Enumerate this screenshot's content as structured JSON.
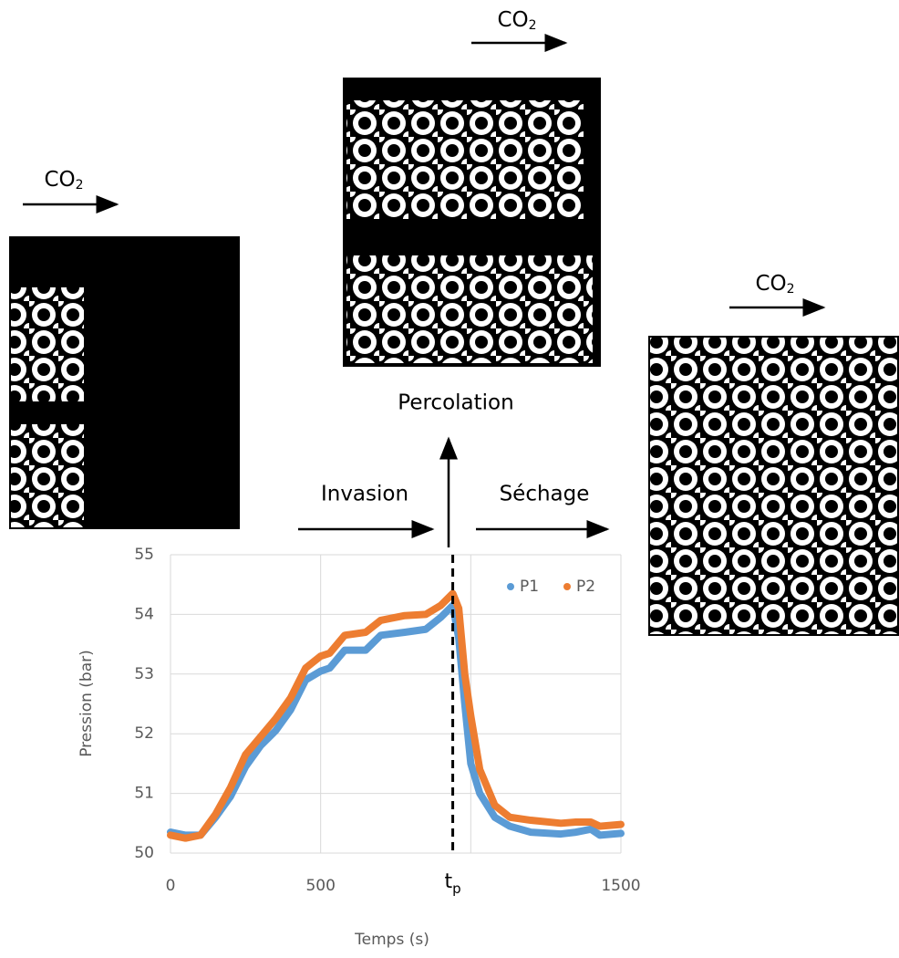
{
  "chart_data": {
    "type": "line",
    "ylabel": "Pression (bar)",
    "xlabel": "Temps (s)",
    "xlim": [
      0,
      1500
    ],
    "ylim": [
      50,
      55
    ],
    "xticks": [
      0,
      500,
      1500
    ],
    "xgrid": [
      0,
      500,
      1000,
      1500
    ],
    "yticks": [
      50,
      51,
      52,
      53,
      54,
      55
    ],
    "grid": true,
    "legend": "upper right",
    "x": [
      0,
      50,
      100,
      150,
      200,
      250,
      300,
      350,
      400,
      450,
      500,
      530,
      580,
      650,
      700,
      780,
      850,
      900,
      940,
      960,
      980,
      1000,
      1030,
      1080,
      1130,
      1200,
      1300,
      1350,
      1400,
      1430,
      1500
    ],
    "series": [
      {
        "name": "P1",
        "color": "#5b9bd5",
        "values": [
          50.35,
          50.3,
          50.3,
          50.6,
          50.95,
          51.45,
          51.8,
          52.05,
          52.4,
          52.9,
          53.05,
          53.1,
          53.4,
          53.4,
          53.65,
          53.7,
          53.75,
          53.95,
          54.15,
          53.6,
          52.5,
          51.5,
          51.0,
          50.6,
          50.45,
          50.35,
          50.32,
          50.35,
          50.4,
          50.3,
          50.33
        ]
      },
      {
        "name": "P2",
        "color": "#ed7d31",
        "values": [
          50.3,
          50.25,
          50.3,
          50.65,
          51.1,
          51.65,
          51.95,
          52.25,
          52.6,
          53.1,
          53.3,
          53.35,
          53.65,
          53.7,
          53.9,
          53.98,
          54.0,
          54.15,
          54.35,
          54.1,
          53.0,
          52.3,
          51.4,
          50.8,
          50.6,
          50.55,
          50.5,
          50.52,
          50.52,
          50.45,
          50.48
        ]
      }
    ],
    "tp_marker": {
      "x": 940,
      "label": "t",
      "subscript": "p"
    },
    "phase_labels": [
      "Invasion",
      "Séchage",
      "Percolation"
    ],
    "flow_labels": [
      {
        "text": "CO",
        "subscript": "2"
      },
      {
        "text": "CO",
        "subscript": "2"
      },
      {
        "text": "CO",
        "subscript": "2"
      }
    ]
  }
}
